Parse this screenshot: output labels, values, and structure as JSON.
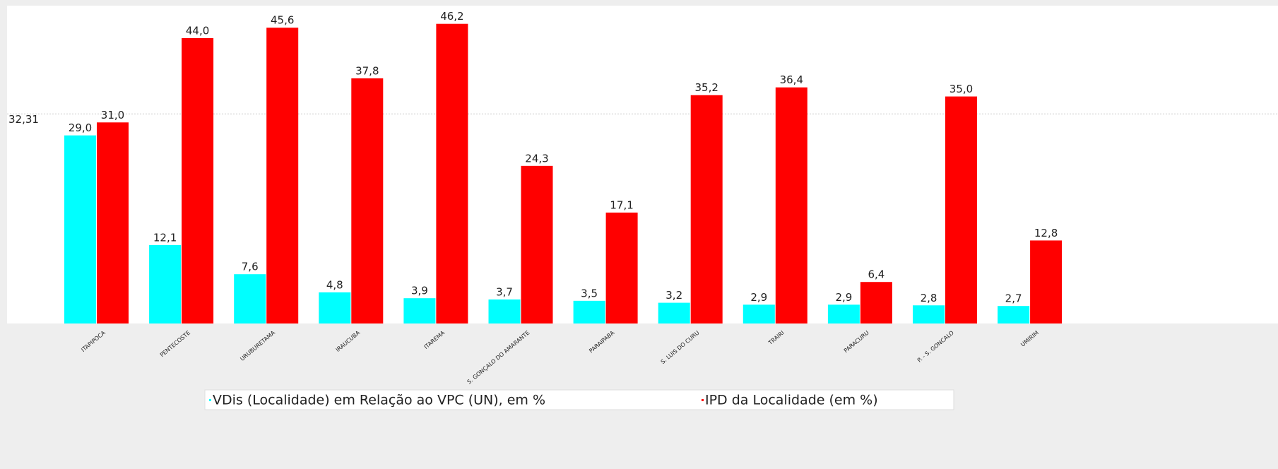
{
  "chart_data": {
    "type": "bar",
    "categories": [
      "ITAPIPOCA",
      "PENTECOSTE",
      "URUBURETAMA",
      "IRAUCUBA",
      "ITAREMA",
      "S. GONÇALO DO AMARANTE",
      "PARAIPABA",
      "S. LUIS DO CURU",
      "TRAIRI",
      "PARACURU",
      "P. - S. GONCALO",
      "UMIRIM"
    ],
    "series": [
      {
        "name": "VDis (Localidade) em Relação ao VPC (UN), em %",
        "color": "#00ffff",
        "values": [
          29.0,
          12.1,
          7.6,
          4.8,
          3.9,
          3.7,
          3.5,
          3.2,
          2.9,
          2.9,
          2.8,
          2.7
        ],
        "value_labels": [
          "29,0",
          "12,1",
          "7,6",
          "4,8",
          "3,9",
          "3,7",
          "3,5",
          "3,2",
          "2,9",
          "2,9",
          "2,8",
          "2,7"
        ]
      },
      {
        "name": "IPD da Localidade (em %)",
        "color": "#ff0000",
        "values": [
          31.0,
          44.0,
          45.6,
          37.8,
          46.2,
          24.3,
          17.1,
          35.2,
          36.4,
          6.4,
          35.0,
          12.8
        ],
        "value_labels": [
          "31,0",
          "44,0",
          "45,6",
          "37,8",
          "46,2",
          "24,3",
          "17,1",
          "35,2",
          "36,4",
          "6,4",
          "35,0",
          "12,8"
        ]
      }
    ],
    "ylim": [
      0,
      49
    ],
    "reference_line": {
      "value": 32.31,
      "label": "32,31"
    }
  }
}
